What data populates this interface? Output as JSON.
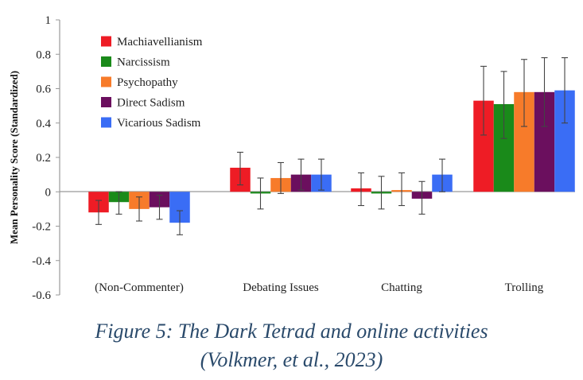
{
  "chart_data": {
    "type": "bar",
    "ylabel": "Mean Personality Score (Standardized)",
    "ylim": [
      -0.6,
      1
    ],
    "yticks": [
      "-0.6",
      "-0.4",
      "-0.2",
      "0",
      "0.2",
      "0.4",
      "0.6",
      "0.8",
      "1"
    ],
    "ytick_values": [
      -0.6,
      -0.4,
      -0.2,
      0,
      0.2,
      0.4,
      0.6,
      0.8,
      1
    ],
    "categories": [
      "(Non-Commenter)",
      "Debating Issues",
      "Chatting",
      "Trolling"
    ],
    "legend_position": "top-left",
    "series": [
      {
        "name": "Machiavellianism",
        "color": "#ee1c25",
        "values": [
          -0.12,
          0.14,
          0.02,
          0.53
        ],
        "err_low": [
          -0.19,
          0.04,
          -0.08,
          0.33
        ],
        "err_high": [
          -0.05,
          0.23,
          0.11,
          0.73
        ]
      },
      {
        "name": "Narcissism",
        "color": "#1a8a1a",
        "values": [
          -0.06,
          -0.01,
          -0.01,
          0.51
        ],
        "err_low": [
          -0.13,
          -0.1,
          -0.1,
          0.31
        ],
        "err_high": [
          0.0,
          0.08,
          0.09,
          0.7
        ]
      },
      {
        "name": "Psychopathy",
        "color": "#f77b2a",
        "values": [
          -0.1,
          0.08,
          0.01,
          0.58
        ],
        "err_low": [
          -0.17,
          -0.01,
          -0.08,
          0.38
        ],
        "err_high": [
          -0.03,
          0.17,
          0.11,
          0.77
        ]
      },
      {
        "name": "Direct Sadism",
        "color": "#6b0f5e",
        "values": [
          -0.09,
          0.1,
          -0.04,
          0.58
        ],
        "err_low": [
          -0.16,
          0.01,
          -0.13,
          0.38
        ],
        "err_high": [
          -0.02,
          0.19,
          0.06,
          0.78
        ]
      },
      {
        "name": "Vicarious Sadism",
        "color": "#3a6df5",
        "values": [
          -0.18,
          0.1,
          0.1,
          0.59
        ],
        "err_low": [
          -0.25,
          0.01,
          0.0,
          0.4
        ],
        "err_high": [
          -0.11,
          0.19,
          0.19,
          0.78
        ]
      }
    ]
  },
  "caption": {
    "line1": "Figure 5: The Dark Tetrad and online activities",
    "line2": "(Volkmer, et al., 2023)"
  }
}
